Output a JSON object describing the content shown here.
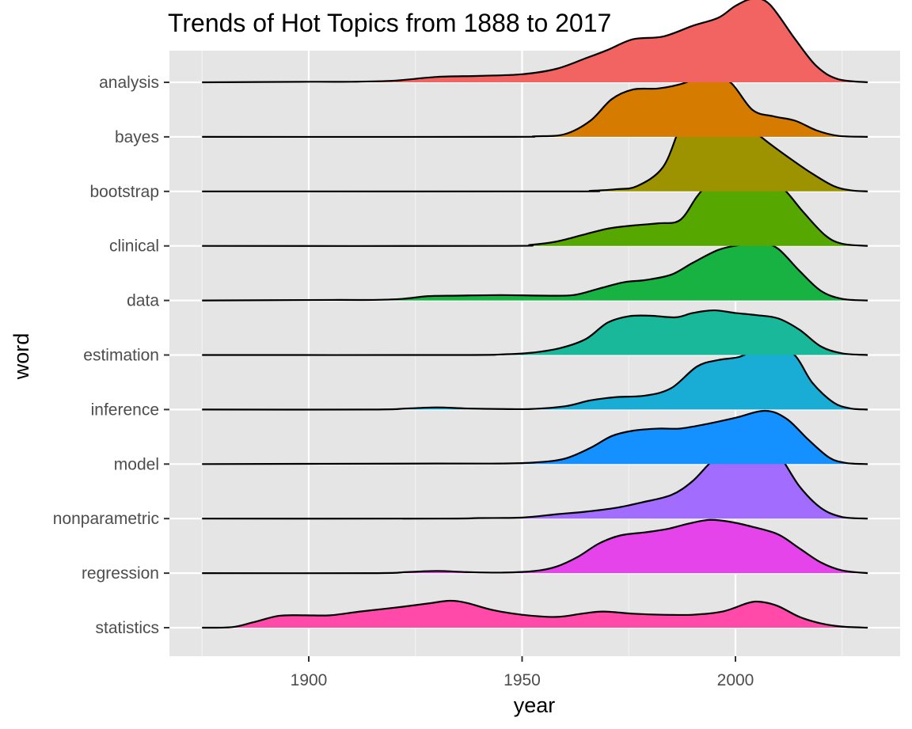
{
  "chart_data": {
    "type": "ridgeline",
    "title": "Trends of Hot Topics from 1888 to 2017",
    "xlabel": "year",
    "ylabel": "word",
    "xlim": [
      1865,
      2040
    ],
    "x_ticks": [
      1900,
      1950,
      2000
    ],
    "x_range_drawn": [
      1875,
      2031
    ],
    "panel_background": "#e5e5e5",
    "grid": true,
    "legend": "none",
    "series": [
      {
        "name": "statistics",
        "color": "#ff4aa9",
        "peak_year": 1933,
        "density": [
          [
            1875,
            0
          ],
          [
            1882,
            0.01
          ],
          [
            1887,
            0.1
          ],
          [
            1893,
            0.22
          ],
          [
            1899,
            0.23
          ],
          [
            1905,
            0.23
          ],
          [
            1912,
            0.3
          ],
          [
            1920,
            0.37
          ],
          [
            1928,
            0.45
          ],
          [
            1933,
            0.5
          ],
          [
            1937,
            0.46
          ],
          [
            1943,
            0.33
          ],
          [
            1950,
            0.24
          ],
          [
            1958,
            0.2
          ],
          [
            1964,
            0.26
          ],
          [
            1969,
            0.3
          ],
          [
            1976,
            0.26
          ],
          [
            1983,
            0.24
          ],
          [
            1990,
            0.24
          ],
          [
            1997,
            0.3
          ],
          [
            2003,
            0.46
          ],
          [
            2006,
            0.48
          ],
          [
            2010,
            0.4
          ],
          [
            2015,
            0.2
          ],
          [
            2020,
            0.08
          ],
          [
            2025,
            0.02
          ],
          [
            2031,
            0
          ]
        ]
      },
      {
        "name": "regression",
        "color": "#e444e9",
        "peak_year": 1994,
        "density": [
          [
            1875,
            0
          ],
          [
            1915,
            0
          ],
          [
            1923,
            0.02
          ],
          [
            1930,
            0.04
          ],
          [
            1937,
            0.02
          ],
          [
            1945,
            0.01
          ],
          [
            1953,
            0.04
          ],
          [
            1958,
            0.12
          ],
          [
            1963,
            0.3
          ],
          [
            1968,
            0.55
          ],
          [
            1973,
            0.7
          ],
          [
            1979,
            0.76
          ],
          [
            1984,
            0.82
          ],
          [
            1989,
            0.92
          ],
          [
            1994,
            0.99
          ],
          [
            1999,
            0.95
          ],
          [
            2004,
            0.86
          ],
          [
            2010,
            0.72
          ],
          [
            2015,
            0.46
          ],
          [
            2020,
            0.2
          ],
          [
            2025,
            0.05
          ],
          [
            2031,
            0
          ]
        ]
      },
      {
        "name": "nonparametric",
        "color": "#a26cfe",
        "peak_year": 2006,
        "density": [
          [
            1875,
            0
          ],
          [
            1930,
            0
          ],
          [
            1940,
            0.01
          ],
          [
            1950,
            0.02
          ],
          [
            1958,
            0.08
          ],
          [
            1965,
            0.13
          ],
          [
            1972,
            0.2
          ],
          [
            1978,
            0.3
          ],
          [
            1985,
            0.44
          ],
          [
            1990,
            0.7
          ],
          [
            1995,
            1.1
          ],
          [
            2000,
            1.28
          ],
          [
            2006,
            1.37
          ],
          [
            2010,
            1.2
          ],
          [
            2015,
            0.6
          ],
          [
            2020,
            0.2
          ],
          [
            2025,
            0.03
          ],
          [
            2031,
            0
          ]
        ]
      },
      {
        "name": "model",
        "color": "#1591ff",
        "peak_year": 2007,
        "density": [
          [
            1875,
            0
          ],
          [
            1930,
            0.01
          ],
          [
            1945,
            0.01
          ],
          [
            1953,
            0.03
          ],
          [
            1960,
            0.1
          ],
          [
            1966,
            0.3
          ],
          [
            1971,
            0.52
          ],
          [
            1976,
            0.62
          ],
          [
            1982,
            0.66
          ],
          [
            1987,
            0.66
          ],
          [
            1993,
            0.74
          ],
          [
            2000,
            0.86
          ],
          [
            2007,
            0.99
          ],
          [
            2012,
            0.84
          ],
          [
            2017,
            0.46
          ],
          [
            2022,
            0.12
          ],
          [
            2026,
            0.02
          ],
          [
            2031,
            0
          ]
        ]
      },
      {
        "name": "inference",
        "color": "#19acd5",
        "peak_year": 2008,
        "density": [
          [
            1875,
            0
          ],
          [
            1915,
            0
          ],
          [
            1923,
            0.02
          ],
          [
            1930,
            0.04
          ],
          [
            1937,
            0.02
          ],
          [
            1945,
            0.01
          ],
          [
            1952,
            0.01
          ],
          [
            1960,
            0.06
          ],
          [
            1966,
            0.17
          ],
          [
            1972,
            0.23
          ],
          [
            1979,
            0.26
          ],
          [
            1985,
            0.4
          ],
          [
            1991,
            0.8
          ],
          [
            1996,
            0.92
          ],
          [
            2001,
            0.98
          ],
          [
            2005,
            1.14
          ],
          [
            2009,
            1.24
          ],
          [
            2014,
            1.0
          ],
          [
            2018,
            0.5
          ],
          [
            2023,
            0.13
          ],
          [
            2027,
            0.02
          ],
          [
            2031,
            0
          ]
        ]
      },
      {
        "name": "estimation",
        "color": "#19b89a",
        "peak_year": 1994,
        "density": [
          [
            1875,
            0
          ],
          [
            1935,
            0
          ],
          [
            1945,
            0.01
          ],
          [
            1952,
            0.04
          ],
          [
            1959,
            0.13
          ],
          [
            1965,
            0.3
          ],
          [
            1970,
            0.6
          ],
          [
            1975,
            0.72
          ],
          [
            1980,
            0.73
          ],
          [
            1986,
            0.7
          ],
          [
            1990,
            0.78
          ],
          [
            1995,
            0.83
          ],
          [
            2000,
            0.78
          ],
          [
            2005,
            0.74
          ],
          [
            2010,
            0.68
          ],
          [
            2015,
            0.47
          ],
          [
            2020,
            0.16
          ],
          [
            2025,
            0.03
          ],
          [
            2031,
            0
          ]
        ]
      },
      {
        "name": "data",
        "color": "#18b243",
        "peak_year": 2006,
        "density": [
          [
            1875,
            0
          ],
          [
            1905,
            0.01
          ],
          [
            1915,
            0.01
          ],
          [
            1922,
            0.03
          ],
          [
            1928,
            0.08
          ],
          [
            1935,
            0.09
          ],
          [
            1945,
            0.1
          ],
          [
            1955,
            0.09
          ],
          [
            1962,
            0.1
          ],
          [
            1968,
            0.22
          ],
          [
            1974,
            0.34
          ],
          [
            1979,
            0.38
          ],
          [
            1985,
            0.48
          ],
          [
            1990,
            0.7
          ],
          [
            1996,
            0.94
          ],
          [
            2001,
            1.03
          ],
          [
            2006,
            1.07
          ],
          [
            2010,
            0.96
          ],
          [
            2015,
            0.55
          ],
          [
            2020,
            0.18
          ],
          [
            2025,
            0.03
          ],
          [
            2031,
            0
          ]
        ]
      },
      {
        "name": "clinical",
        "color": "#56a700",
        "peak_year": 2007,
        "density": [
          [
            1875,
            0
          ],
          [
            1945,
            0
          ],
          [
            1952,
            0.02
          ],
          [
            1958,
            0.08
          ],
          [
            1964,
            0.2
          ],
          [
            1970,
            0.32
          ],
          [
            1976,
            0.38
          ],
          [
            1982,
            0.42
          ],
          [
            1987,
            0.48
          ],
          [
            1991,
            0.92
          ],
          [
            1994,
            1.18
          ],
          [
            1997,
            1.2
          ],
          [
            2000,
            1.08
          ],
          [
            2004,
            1.14
          ],
          [
            2007,
            1.2
          ],
          [
            2011,
            1.08
          ],
          [
            2016,
            0.62
          ],
          [
            2021,
            0.2
          ],
          [
            2025,
            0.04
          ],
          [
            2031,
            0
          ]
        ]
      },
      {
        "name": "bootstrap",
        "color": "#9d9300",
        "peak_year": 1993,
        "density": [
          [
            1875,
            0
          ],
          [
            1960,
            0
          ],
          [
            1966,
            0.01
          ],
          [
            1972,
            0.04
          ],
          [
            1977,
            0.1
          ],
          [
            1983,
            0.45
          ],
          [
            1987,
            1.2
          ],
          [
            1990,
            1.73
          ],
          [
            1993,
            1.9
          ],
          [
            1997,
            1.75
          ],
          [
            2002,
            1.28
          ],
          [
            2007,
            0.95
          ],
          [
            2013,
            0.6
          ],
          [
            2018,
            0.33
          ],
          [
            2023,
            0.1
          ],
          [
            2027,
            0.02
          ],
          [
            2031,
            0
          ]
        ]
      },
      {
        "name": "bayes",
        "color": "#d57b00",
        "peak_year": 1994,
        "density": [
          [
            1875,
            0
          ],
          [
            1945,
            0
          ],
          [
            1953,
            0.01
          ],
          [
            1960,
            0.05
          ],
          [
            1966,
            0.3
          ],
          [
            1971,
            0.7
          ],
          [
            1976,
            0.88
          ],
          [
            1982,
            0.9
          ],
          [
            1988,
            1.0
          ],
          [
            1994,
            1.2
          ],
          [
            1999,
            1.0
          ],
          [
            2004,
            0.5
          ],
          [
            2009,
            0.38
          ],
          [
            2014,
            0.3
          ],
          [
            2019,
            0.12
          ],
          [
            2024,
            0.02
          ],
          [
            2031,
            0
          ]
        ]
      },
      {
        "name": "analysis",
        "color": "#f26461",
        "peak_year": 2004,
        "density": [
          [
            1875,
            0
          ],
          [
            1900,
            0.01
          ],
          [
            1910,
            0.01
          ],
          [
            1920,
            0.03
          ],
          [
            1930,
            0.1
          ],
          [
            1940,
            0.12
          ],
          [
            1950,
            0.15
          ],
          [
            1958,
            0.25
          ],
          [
            1965,
            0.45
          ],
          [
            1970,
            0.6
          ],
          [
            1976,
            0.8
          ],
          [
            1983,
            0.85
          ],
          [
            1990,
            1.05
          ],
          [
            1996,
            1.2
          ],
          [
            2000,
            1.42
          ],
          [
            2004,
            1.55
          ],
          [
            2008,
            1.45
          ],
          [
            2014,
            0.8
          ],
          [
            2019,
            0.3
          ],
          [
            2024,
            0.06
          ],
          [
            2031,
            0
          ]
        ]
      }
    ]
  }
}
